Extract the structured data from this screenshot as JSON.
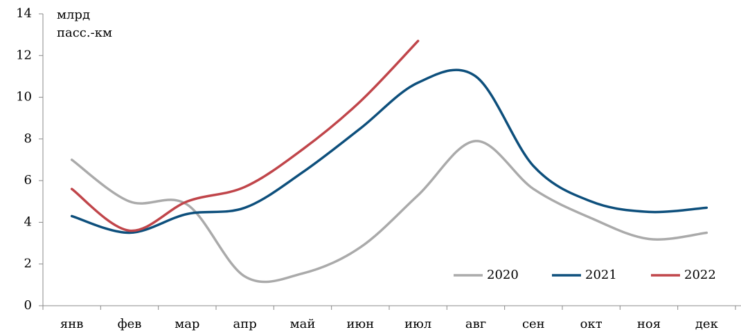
{
  "chart_data": {
    "type": "line",
    "ylabel_lines": [
      "млрд",
      "пасс.-км"
    ],
    "categories": [
      "янв",
      "фев",
      "мар",
      "апр",
      "май",
      "июн",
      "июл",
      "авг",
      "сен",
      "окт",
      "ноя",
      "дек"
    ],
    "series": [
      {
        "name": "2020",
        "color": "#aaaaaa",
        "values": [
          7.0,
          5.0,
          4.85,
          1.4,
          1.55,
          2.8,
          5.3,
          7.9,
          5.6,
          4.2,
          3.2,
          3.5
        ]
      },
      {
        "name": "2021",
        "color": "#0d4f7c",
        "values": [
          4.3,
          3.5,
          4.4,
          4.7,
          6.4,
          8.5,
          10.7,
          11.0,
          6.7,
          5.0,
          4.5,
          4.7
        ]
      },
      {
        "name": "2022",
        "color": "#c0454a",
        "values": [
          5.6,
          3.6,
          5.0,
          5.7,
          7.5,
          9.8,
          12.7,
          null,
          null,
          null,
          null,
          null
        ]
      }
    ],
    "ylim": [
      0,
      14
    ],
    "yticks": [
      0,
      2,
      4,
      6,
      8,
      10,
      12,
      14
    ],
    "grid": false,
    "legend": "bottom-right"
  }
}
